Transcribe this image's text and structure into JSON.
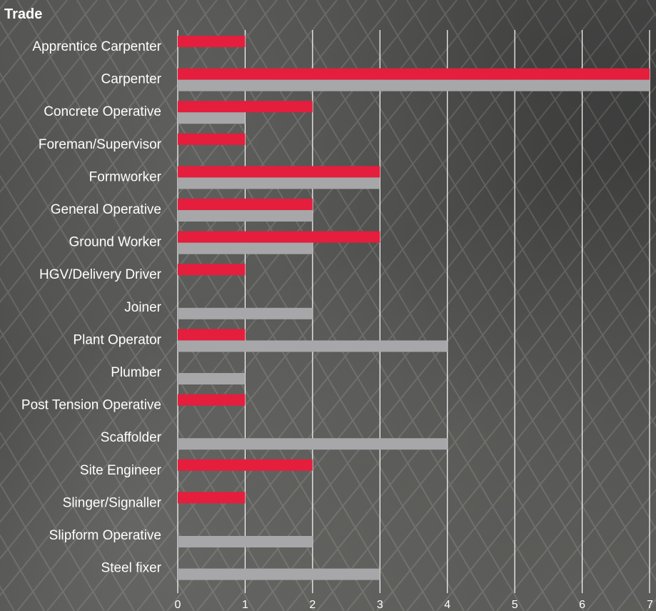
{
  "chart_data": {
    "type": "bar",
    "orientation": "horizontal",
    "title": "Trade",
    "categories": [
      "Apprentice Carpenter",
      "Carpenter",
      "Concrete Operative",
      "Foreman/Supervisor",
      "Formworker",
      "General Operative",
      "Ground Worker",
      "HGV/Delivery Driver",
      "Joiner",
      "Plant Operator",
      "Plumber",
      "Post Tension Operative",
      "Scaffolder",
      "Site Engineer",
      "Slinger/Signaller",
      "Slipform Operative",
      "Steel fixer"
    ],
    "series": [
      {
        "color": "#e41e3c",
        "values": [
          1,
          7,
          2,
          1,
          3,
          2,
          3,
          1,
          0,
          1,
          0,
          1,
          0,
          2,
          1,
          0,
          0
        ]
      },
      {
        "color": "#a7a7a9",
        "values": [
          0,
          7,
          1,
          0,
          3,
          2,
          2,
          0,
          2,
          4,
          1,
          0,
          4,
          0,
          0,
          2,
          3
        ]
      }
    ],
    "xlim": [
      0,
      7
    ],
    "xticks": [
      "0",
      "1",
      "2",
      "3",
      "4",
      "5",
      "6",
      "7"
    ],
    "grid": true,
    "gridline_color": "#ffffff"
  }
}
